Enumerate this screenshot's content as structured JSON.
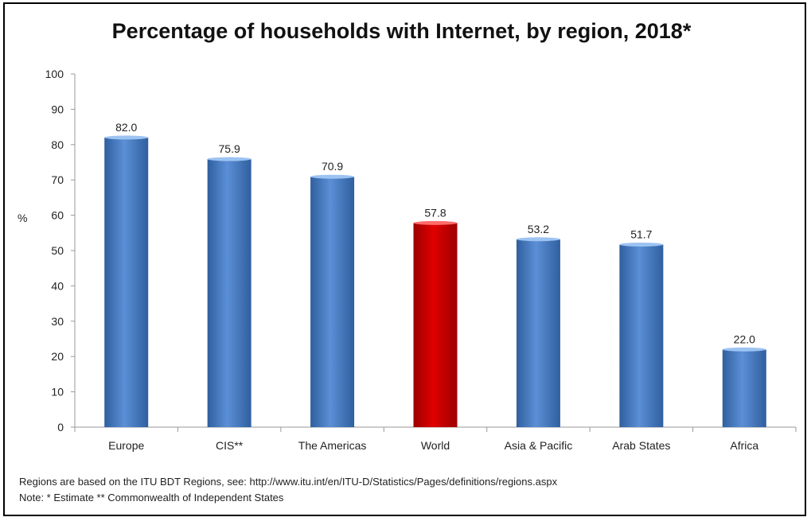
{
  "chart_data": {
    "type": "bar",
    "title": "Percentage of households with Internet, by region, 2018*",
    "ylabel": "%",
    "xlabel": "",
    "ylim": [
      0,
      100
    ],
    "yticks": [
      0,
      10,
      20,
      30,
      40,
      50,
      60,
      70,
      80,
      90,
      100
    ],
    "categories": [
      "Europe",
      "CIS**",
      "The Americas",
      "World",
      "Asia & Pacific",
      "Arab States",
      "Africa"
    ],
    "values": [
      82.0,
      75.9,
      70.9,
      57.8,
      53.2,
      51.7,
      22.0
    ],
    "data_labels": [
      "82.0",
      "75.9",
      "70.9",
      "57.8",
      "53.2",
      "51.7",
      "22.0"
    ],
    "colors": {
      "default": "#4a7fc8",
      "highlight": "#c00000",
      "highlight_category": "World"
    },
    "grid": false,
    "legend": "none"
  },
  "footnotes": {
    "line1": "Regions are based on the ITU BDT Regions, see: http://www.itu.int/en/ITU-D/Statistics/Pages/definitions/regions.aspx",
    "line2": "Note: * Estimate ** Commonwealth of Independent States"
  }
}
